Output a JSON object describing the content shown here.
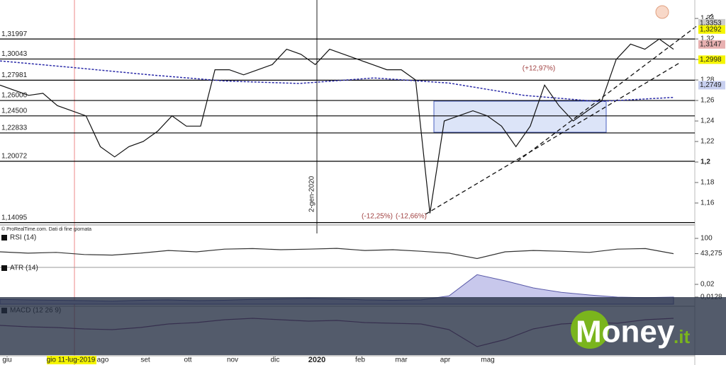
{
  "chart_data": [
    {
      "type": "line",
      "panel": "price",
      "ylim": [
        1.14,
        1.358
      ],
      "yticks": [
        {
          "value": 1.34,
          "label": "1,34"
        },
        {
          "value": 1.32,
          "label": "1,32"
        },
        {
          "value": 1.3,
          "label": "1,3"
        },
        {
          "value": 1.28,
          "label": "1,28"
        },
        {
          "value": 1.26,
          "label": "1,26"
        },
        {
          "value": 1.24,
          "label": "1,24"
        },
        {
          "value": 1.22,
          "label": "1,22"
        },
        {
          "value": 1.2,
          "label": "1,2"
        },
        {
          "value": 1.18,
          "label": "1,18"
        },
        {
          "value": 1.16,
          "label": "1,16"
        }
      ],
      "color": "#111111",
      "values": [
        1.275,
        1.27,
        1.265,
        1.267,
        1.255,
        1.25,
        1.245,
        1.215,
        1.205,
        1.215,
        1.22,
        1.23,
        1.245,
        1.235,
        1.235,
        1.29,
        1.29,
        1.285,
        1.29,
        1.295,
        1.31,
        1.305,
        1.295,
        1.31,
        1.305,
        1.3,
        1.295,
        1.29,
        1.29,
        1.28,
        1.15,
        1.24,
        1.245,
        1.25,
        1.245,
        1.235,
        1.215,
        1.235,
        1.275,
        1.255,
        1.24,
        1.25,
        1.26,
        1.3,
        1.315,
        1.31,
        1.32,
        1.31
      ],
      "ma_color": "#2a2aa8",
      "ma_values": [
        1.2986,
        1.292,
        1.285,
        1.279,
        1.2766,
        1.282,
        1.277,
        1.265,
        1.259,
        1.263
      ],
      "levels": [
        {
          "value": 1.31997,
          "label": "1,31997"
        },
        {
          "value": 1.30043,
          "label": "1,30043"
        },
        {
          "value": 1.27981,
          "label": "1,27981"
        },
        {
          "value": 1.26,
          "label": "1,26000"
        },
        {
          "value": 1.245,
          "label": "1,24500"
        },
        {
          "value": 1.22833,
          "label": "1,22833"
        },
        {
          "value": 1.20072,
          "label": "1,20072"
        },
        {
          "value": 1.14095,
          "label": "1,14095"
        }
      ],
      "price_tags": [
        {
          "value": 1.3353,
          "label": "1,3353",
          "color": "#cccccc"
        },
        {
          "value": 1.3292,
          "label": "1,3292",
          "color": "#f5f500"
        },
        {
          "value": 1.3147,
          "label": "1,3147",
          "color": "#e8b0b0"
        },
        {
          "value": 1.2998,
          "label": "1,2998",
          "color": "#f5f500"
        },
        {
          "value": 1.2749,
          "label": "1,2749",
          "color": "#c8d0f0"
        }
      ],
      "annotations": [
        "(+12,97%)",
        "(-12,25%)",
        "(-12,66%)"
      ],
      "date_marker": "2-gen-2020",
      "source": "© ProRealTime.com. Dati di fine giornata",
      "x_labels": [
        "giu",
        "gio 11-lug-2019",
        "ago",
        "set",
        "ott",
        "nov",
        "dic",
        "2020",
        "feb",
        "mar",
        "apr",
        "mag"
      ]
    },
    {
      "type": "line",
      "panel": "rsi",
      "title": "RSI (14)",
      "ylim": [
        0,
        100
      ],
      "yticks": [
        100
      ],
      "color": "#333333",
      "values": [
        50,
        45,
        48,
        40,
        38,
        45,
        55,
        50,
        60,
        62,
        58,
        60,
        63,
        55,
        58,
        52,
        45,
        25,
        50,
        55,
        52,
        48,
        60,
        62,
        43.275
      ],
      "last": {
        "value": 43.275,
        "label": "43,275"
      }
    },
    {
      "type": "area",
      "panel": "atr",
      "title": "ATR (14)",
      "ylim": [
        0.0088,
        0.0288
      ],
      "yticks": [
        {
          "value": 0.02,
          "label": "0,02"
        }
      ],
      "color": "#5a5aa8",
      "values": [
        0.0115,
        0.0112,
        0.011,
        0.0108,
        0.0105,
        0.011,
        0.0112,
        0.0108,
        0.011,
        0.0115,
        0.0118,
        0.0122,
        0.0118,
        0.0112,
        0.011,
        0.0112,
        0.0135,
        0.0255,
        0.022,
        0.018,
        0.0155,
        0.014,
        0.0128,
        0.0125,
        0.0128
      ],
      "last": {
        "value": 0.0128,
        "label": "0,0128"
      }
    },
    {
      "type": "line",
      "panel": "macd",
      "title": "MACD (12 26 9)",
      "ylim": [
        -0.04,
        0.02
      ],
      "color": "#7a3a7a",
      "values": [
        0,
        -0.002,
        -0.003,
        -0.005,
        -0.006,
        -0.003,
        0.002,
        0.004,
        0.008,
        0.01,
        0.008,
        0.006,
        0.007,
        0.004,
        0.003,
        0.002,
        -0.006,
        -0.03,
        -0.02,
        -0.005,
        0.002,
        0.004,
        0.003,
        0.008,
        0.01
      ]
    }
  ],
  "logo": {
    "name": "Money",
    "suffix": ".it"
  }
}
